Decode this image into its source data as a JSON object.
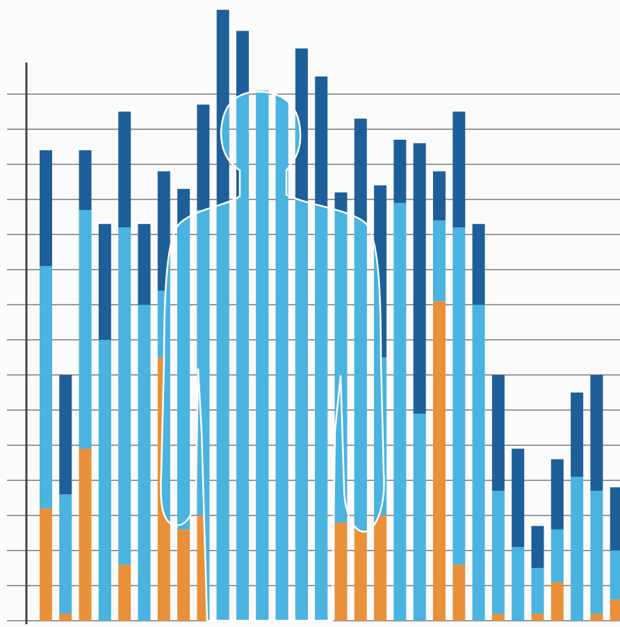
{
  "chart_data": {
    "type": "stacked_bar",
    "categories": [
      null,
      null,
      null,
      null,
      null,
      null,
      null,
      null,
      null,
      null,
      null,
      null,
      null,
      null,
      null,
      null,
      null,
      null,
      null,
      null,
      null,
      null,
      null,
      null,
      null,
      null,
      null,
      null,
      null,
      null
    ],
    "series": [
      {
        "color": "#e8913a",
        "values": [
          3.2,
          0.2,
          4.9,
          0,
          1.6,
          0,
          7.5,
          2.6,
          3.0,
          0,
          0,
          1.2,
          0.8,
          0,
          0,
          2.8,
          2.6,
          3.0,
          0,
          0,
          9.1,
          1.6,
          0,
          0.2,
          0,
          0.2,
          1.1,
          0,
          0.2,
          0.6
        ]
      },
      {
        "color": "#4ab3e0",
        "values": [
          6.9,
          3.4,
          6.8,
          8.0,
          9.6,
          9.0,
          1.9,
          8.2,
          8.7,
          11.8,
          11.8,
          13.9,
          14.0,
          11.9,
          11.8,
          8.5,
          8.5,
          4.5,
          11.9,
          5.9,
          2.3,
          9.6,
          9.0,
          3.5,
          2.1,
          1.3,
          1.5,
          4.1,
          3.5,
          1.4
        ]
      },
      {
        "color": "#1f5f99",
        "values": [
          3.3,
          3.4,
          1.7,
          3.3,
          3.3,
          2.3,
          3.4,
          1.5,
          3.0,
          5.6,
          5.0,
          0,
          0,
          4.4,
          3.7,
          0.9,
          3.2,
          4.9,
          1.8,
          7.7,
          1.4,
          3.3,
          2.3,
          3.3,
          2.8,
          1.2,
          2.0,
          2.4,
          3.3,
          1.8
        ]
      }
    ],
    "ylim": [
      0,
      17.6
    ],
    "yticks": [
      0,
      1,
      2,
      3,
      4,
      5,
      6,
      7,
      8,
      9,
      10,
      11,
      12,
      13,
      14,
      15
    ],
    "grid": true
  }
}
